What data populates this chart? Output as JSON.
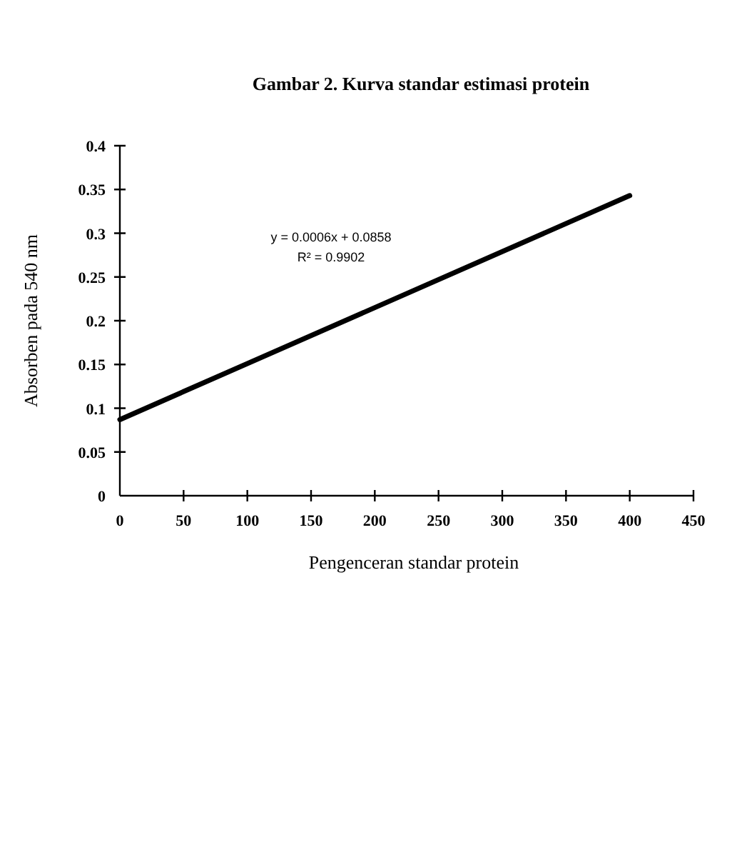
{
  "chart_data": {
    "type": "line",
    "title": "Gambar 2. Kurva standar estimasi protein",
    "xlabel": "Pengenceran standar protein",
    "ylabel": "Absorben pada 540 nm",
    "annotations": [
      "y = 0.0006x + 0.0858",
      "R² = 0.9902"
    ],
    "x": [
      0,
      400
    ],
    "series": [
      {
        "color": "#000000",
        "values": [
          0.087,
          0.343
        ]
      }
    ],
    "xlim": [
      0,
      450
    ],
    "xticks": [
      0,
      50,
      100,
      150,
      200,
      250,
      300,
      350,
      400,
      450
    ],
    "ylim": [
      0,
      0.4
    ],
    "yticks": [
      0,
      0.05,
      0.1,
      0.15,
      0.2,
      0.25,
      0.3,
      0.35,
      0.4
    ],
    "grid": false,
    "marker": "none",
    "line_style": "solid"
  }
}
